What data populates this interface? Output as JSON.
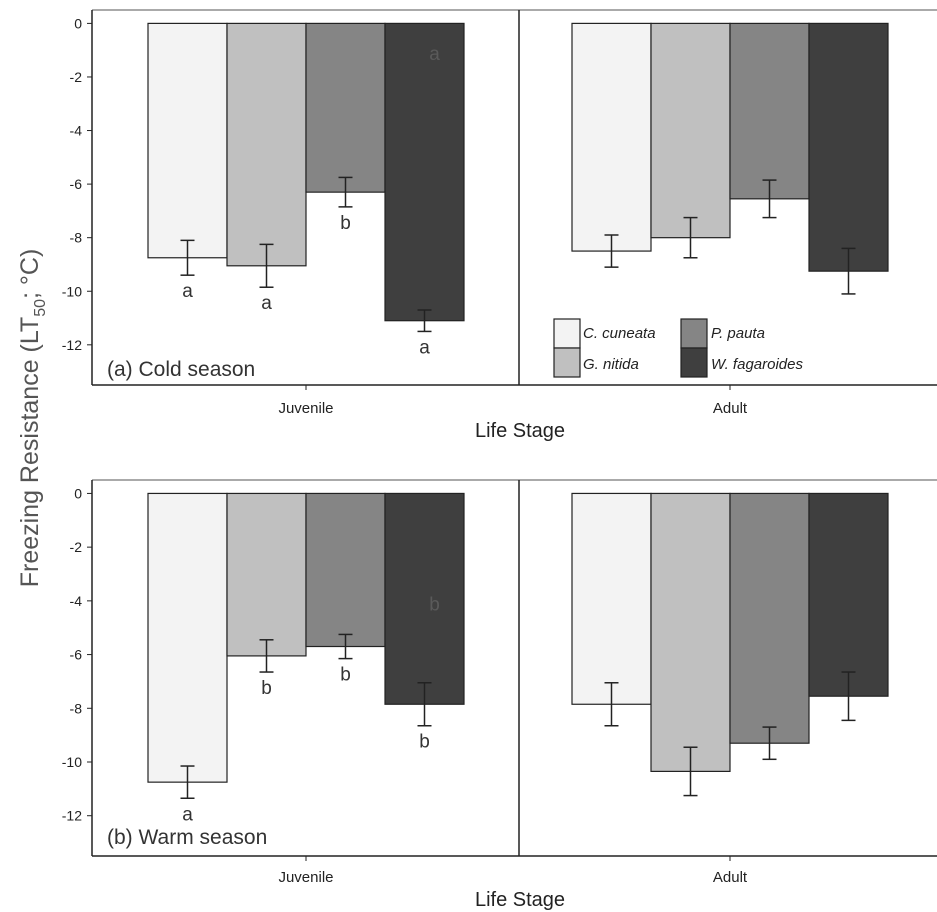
{
  "figure": {
    "ylabel_main": "Freezing Resistance (LT",
    "ylabel_sub": "50",
    "ylabel_tail": "; °C)"
  },
  "colors": {
    "C. cuneata": "#f3f3f3",
    "G. nitida": "#c0c0c0",
    "P. pauta": "#858585",
    "W. fagaroides": "#3f3f3f"
  },
  "legend": {
    "entries": [
      "C. cuneata",
      "G. nitida",
      "P. pauta",
      "W. fagaroides"
    ],
    "placement": "bottom-right of panel (a), Adult facet"
  },
  "chart_data": [
    {
      "type": "bar",
      "title": "(a) Cold season",
      "xlabel": "Life Stage",
      "ylabel": "Freezing Resistance (LT50; °C)",
      "ylim": [
        -13.5,
        0.5
      ],
      "yticks": [
        0,
        -2,
        -4,
        -6,
        -8,
        -10,
        -12
      ],
      "grid": false,
      "categories": [
        "Juvenile",
        "Adult"
      ],
      "series": [
        {
          "name": "C. cuneata",
          "values": [
            -8.75,
            -8.5
          ],
          "error": [
            0.65,
            0.6
          ],
          "letters": [
            "a",
            ""
          ]
        },
        {
          "name": "G. nitida",
          "values": [
            -9.05,
            -8.0
          ],
          "error": [
            0.8,
            0.75
          ],
          "letters": [
            "a",
            ""
          ]
        },
        {
          "name": "P. pauta",
          "values": [
            -6.3,
            -6.55
          ],
          "error": [
            0.55,
            0.7
          ],
          "letters": [
            "b",
            ""
          ]
        },
        {
          "name": "W. fagaroides",
          "values": [
            -11.1,
            -9.25
          ],
          "error": [
            0.4,
            0.85
          ],
          "letters": [
            "a",
            ""
          ]
        }
      ],
      "annotations": [
        {
          "text": "a",
          "category": "Juvenile",
          "series": "W. fagaroides",
          "y": -1.1
        }
      ]
    },
    {
      "type": "bar",
      "title": "(b) Warm season",
      "xlabel": "Life Stage",
      "ylabel": "Freezing Resistance (LT50; °C)",
      "ylim": [
        -13.5,
        0.5
      ],
      "yticks": [
        0,
        -2,
        -4,
        -6,
        -8,
        -10,
        -12
      ],
      "grid": false,
      "categories": [
        "Juvenile",
        "Adult"
      ],
      "series": [
        {
          "name": "C. cuneata",
          "values": [
            -10.75,
            -7.85
          ],
          "error": [
            0.6,
            0.8
          ],
          "letters": [
            "a",
            ""
          ]
        },
        {
          "name": "G. nitida",
          "values": [
            -6.05,
            -10.35
          ],
          "error": [
            0.6,
            0.9
          ],
          "letters": [
            "b",
            ""
          ]
        },
        {
          "name": "P. pauta",
          "values": [
            -5.7,
            -9.3
          ],
          "error": [
            0.45,
            0.6
          ],
          "letters": [
            "b",
            ""
          ]
        },
        {
          "name": "W. fagaroides",
          "values": [
            -7.85,
            -7.55
          ],
          "error": [
            0.8,
            0.9
          ],
          "letters": [
            "b",
            ""
          ]
        }
      ],
      "annotations": [
        {
          "text": "b",
          "category": "Juvenile",
          "series": "W. fagaroides",
          "y": -4.1
        }
      ]
    }
  ]
}
